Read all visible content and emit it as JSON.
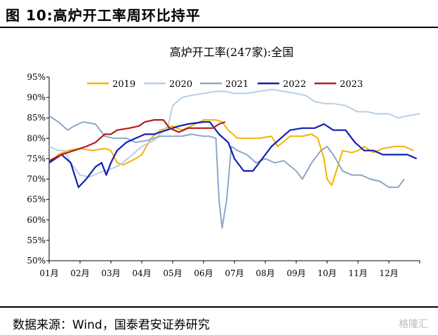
{
  "figure": {
    "label": "图 10:高炉开工率周环比持平",
    "source": "数据来源：Wind，国泰君安证券研究",
    "watermark": "格隆汇"
  },
  "chart_data": {
    "type": "line",
    "title": "高炉开工率(247家):全国",
    "xlabel": "",
    "ylabel": "",
    "categories": [
      "01月",
      "02月",
      "03月",
      "04月",
      "05月",
      "06月",
      "07月",
      "08月",
      "09月",
      "10月",
      "11月",
      "12月"
    ],
    "y_ticks": [
      "50%",
      "55%",
      "60%",
      "65%",
      "70%",
      "75%",
      "80%",
      "85%",
      "90%",
      "95%"
    ],
    "ylim": [
      50,
      95
    ],
    "grid": false,
    "legend": "top",
    "series": [
      {
        "name": "2019",
        "color": "#f2b400",
        "width": 2,
        "points": [
          [
            1.0,
            74
          ],
          [
            1.3,
            76
          ],
          [
            1.6,
            77
          ],
          [
            2.0,
            77.5
          ],
          [
            2.4,
            77
          ],
          [
            2.8,
            77.5
          ],
          [
            3.0,
            77
          ],
          [
            3.2,
            74
          ],
          [
            3.4,
            73.5
          ],
          [
            3.8,
            75
          ],
          [
            4.0,
            76
          ],
          [
            4.3,
            80
          ],
          [
            4.6,
            82
          ],
          [
            5.0,
            83
          ],
          [
            5.3,
            82
          ],
          [
            5.6,
            83
          ],
          [
            6.0,
            84.5
          ],
          [
            6.4,
            84.5
          ],
          [
            6.6,
            84
          ],
          [
            6.8,
            82
          ],
          [
            7.1,
            80
          ],
          [
            7.4,
            80
          ],
          [
            7.8,
            80
          ],
          [
            8.2,
            80.5
          ],
          [
            8.4,
            78
          ],
          [
            8.8,
            80.5
          ],
          [
            9.2,
            80.5
          ],
          [
            9.5,
            81
          ],
          [
            9.7,
            80
          ],
          [
            9.9,
            75
          ],
          [
            10.0,
            70
          ],
          [
            10.15,
            68.5
          ],
          [
            10.3,
            72
          ],
          [
            10.5,
            77
          ],
          [
            10.8,
            76.5
          ],
          [
            11.0,
            77
          ],
          [
            11.2,
            78
          ],
          [
            11.5,
            76.5
          ],
          [
            11.8,
            77.5
          ],
          [
            12.2,
            78
          ],
          [
            12.5,
            78
          ],
          [
            12.8,
            77
          ]
        ]
      },
      {
        "name": "2020",
        "color": "#b7cfe6",
        "width": 2,
        "points": [
          [
            1.0,
            78
          ],
          [
            1.3,
            77
          ],
          [
            1.5,
            77
          ],
          [
            1.7,
            74
          ],
          [
            2.0,
            71
          ],
          [
            2.3,
            70.5
          ],
          [
            2.6,
            71.5
          ],
          [
            3.0,
            72.5
          ],
          [
            3.3,
            73.5
          ],
          [
            3.7,
            76
          ],
          [
            4.0,
            78
          ],
          [
            4.4,
            79.5
          ],
          [
            4.7,
            82
          ],
          [
            4.85,
            83
          ],
          [
            5.0,
            88
          ],
          [
            5.3,
            90
          ],
          [
            5.6,
            90.5
          ],
          [
            6.0,
            91
          ],
          [
            6.4,
            91.5
          ],
          [
            6.7,
            91.5
          ],
          [
            7.0,
            91
          ],
          [
            7.4,
            91
          ],
          [
            7.8,
            91.5
          ],
          [
            8.2,
            92
          ],
          [
            8.6,
            91.5
          ],
          [
            9.0,
            91
          ],
          [
            9.3,
            90.5
          ],
          [
            9.6,
            89
          ],
          [
            9.9,
            88.5
          ],
          [
            10.2,
            88.5
          ],
          [
            10.6,
            88
          ],
          [
            11.0,
            86.5
          ],
          [
            11.3,
            86.5
          ],
          [
            11.6,
            86
          ],
          [
            12.0,
            86
          ],
          [
            12.3,
            85
          ],
          [
            12.6,
            85.5
          ],
          [
            13.0,
            86
          ]
        ]
      },
      {
        "name": "2021",
        "color": "#8aa8c8",
        "width": 2,
        "points": [
          [
            1.0,
            85.5
          ],
          [
            1.3,
            84
          ],
          [
            1.6,
            82
          ],
          [
            1.8,
            83
          ],
          [
            2.1,
            84
          ],
          [
            2.5,
            83.5
          ],
          [
            2.8,
            80.5
          ],
          [
            3.1,
            80
          ],
          [
            3.5,
            80
          ],
          [
            3.8,
            79
          ],
          [
            4.2,
            79.5
          ],
          [
            4.6,
            80.5
          ],
          [
            5.0,
            80.5
          ],
          [
            5.3,
            80.5
          ],
          [
            5.6,
            81
          ],
          [
            6.0,
            80.5
          ],
          [
            6.2,
            80.5
          ],
          [
            6.4,
            80
          ],
          [
            6.5,
            65
          ],
          [
            6.6,
            58
          ],
          [
            6.75,
            65
          ],
          [
            6.9,
            78
          ],
          [
            7.1,
            77
          ],
          [
            7.4,
            76
          ],
          [
            7.7,
            74
          ],
          [
            8.0,
            75
          ],
          [
            8.3,
            74
          ],
          [
            8.6,
            74.5
          ],
          [
            9.0,
            72
          ],
          [
            9.2,
            70
          ],
          [
            9.5,
            74
          ],
          [
            9.8,
            77
          ],
          [
            10.0,
            78
          ],
          [
            10.2,
            76
          ],
          [
            10.5,
            72
          ],
          [
            10.8,
            71
          ],
          [
            11.1,
            71
          ],
          [
            11.4,
            70
          ],
          [
            11.7,
            69.5
          ],
          [
            12.0,
            68
          ],
          [
            12.3,
            68
          ],
          [
            12.5,
            70
          ]
        ]
      },
      {
        "name": "2022",
        "color": "#0f1fb5",
        "width": 2.2,
        "points": [
          [
            1.0,
            74
          ],
          [
            1.2,
            75
          ],
          [
            1.4,
            76
          ],
          [
            1.7,
            74
          ],
          [
            1.95,
            68
          ],
          [
            2.2,
            70
          ],
          [
            2.5,
            73
          ],
          [
            2.7,
            74
          ],
          [
            2.85,
            71
          ],
          [
            3.0,
            74
          ],
          [
            3.2,
            77
          ],
          [
            3.5,
            79
          ],
          [
            3.8,
            80
          ],
          [
            4.1,
            81
          ],
          [
            4.4,
            81
          ],
          [
            4.8,
            82
          ],
          [
            5.2,
            83
          ],
          [
            5.5,
            83.5
          ],
          [
            6.0,
            84
          ],
          [
            6.2,
            84
          ],
          [
            6.5,
            81
          ],
          [
            6.8,
            79
          ],
          [
            7.0,
            75
          ],
          [
            7.3,
            72
          ],
          [
            7.6,
            72
          ],
          [
            7.9,
            75
          ],
          [
            8.2,
            78
          ],
          [
            8.5,
            80
          ],
          [
            8.8,
            82
          ],
          [
            9.2,
            82.5
          ],
          [
            9.6,
            82.5
          ],
          [
            9.9,
            83.5
          ],
          [
            10.2,
            82
          ],
          [
            10.6,
            82
          ],
          [
            10.9,
            79
          ],
          [
            11.2,
            77
          ],
          [
            11.5,
            77
          ],
          [
            11.8,
            76
          ],
          [
            12.2,
            76
          ],
          [
            12.6,
            76
          ],
          [
            12.9,
            75
          ]
        ]
      },
      {
        "name": "2023",
        "color": "#b51c1c",
        "width": 2.2,
        "points": [
          [
            1.0,
            74.5
          ],
          [
            1.4,
            76
          ],
          [
            1.8,
            77
          ],
          [
            2.2,
            78
          ],
          [
            2.5,
            79
          ],
          [
            2.8,
            81
          ],
          [
            3.0,
            81
          ],
          [
            3.2,
            82
          ],
          [
            3.6,
            82.5
          ],
          [
            3.9,
            83
          ],
          [
            4.1,
            84
          ],
          [
            4.4,
            84.5
          ],
          [
            4.7,
            84.5
          ],
          [
            4.9,
            82.5
          ],
          [
            5.2,
            81.5
          ],
          [
            5.5,
            82.5
          ],
          [
            6.0,
            82.5
          ],
          [
            6.3,
            82.5
          ],
          [
            6.5,
            83.5
          ],
          [
            6.7,
            84
          ]
        ]
      }
    ]
  }
}
